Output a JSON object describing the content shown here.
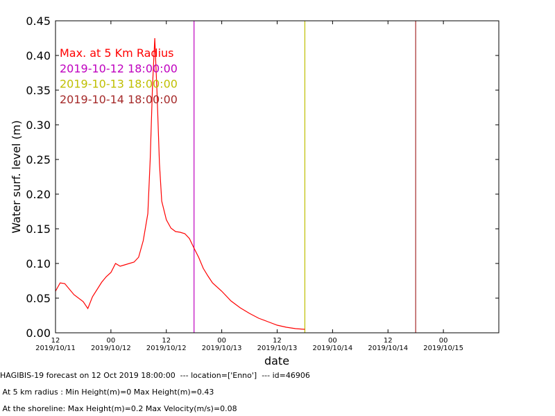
{
  "chart_data": {
    "type": "line",
    "xlabel": "date",
    "ylabel": "Water surf. level (m)",
    "ylim": [
      0,
      0.45
    ],
    "yticks": [
      "0.00",
      "0.05",
      "0.10",
      "0.15",
      "0.20",
      "0.25",
      "0.30",
      "0.35",
      "0.40",
      "0.45"
    ],
    "xlim": [
      "2019-10-11 12:00",
      "2019-10-15 12:00"
    ],
    "xticks": [
      {
        "top": "12",
        "bottom": "2019/10/11"
      },
      {
        "top": "00",
        "bottom": "2019/10/12"
      },
      {
        "top": "12",
        "bottom": "2019/10/12"
      },
      {
        "top": "00",
        "bottom": "2019/10/13"
      },
      {
        "top": "12",
        "bottom": "2019/10/13"
      },
      {
        "top": "00",
        "bottom": "2019/10/14"
      },
      {
        "top": "12",
        "bottom": "2019/10/14"
      },
      {
        "top": "00",
        "bottom": "2019/10/15"
      }
    ],
    "series": [
      {
        "name": "Max. at 5 Km Radius",
        "color": "#ff0000",
        "x": [
          "2019-10-11 12:00",
          "2019-10-11 13:00",
          "2019-10-11 14:00",
          "2019-10-11 16:00",
          "2019-10-11 18:00",
          "2019-10-11 19:00",
          "2019-10-11 20:00",
          "2019-10-11 22:00",
          "2019-10-11 23:00",
          "2019-10-12 00:00",
          "2019-10-12 01:00",
          "2019-10-12 02:00",
          "2019-10-12 03:00",
          "2019-10-12 05:00",
          "2019-10-12 06:00",
          "2019-10-12 07:00",
          "2019-10-12 08:00",
          "2019-10-12 08:30",
          "2019-10-12 09:00",
          "2019-10-12 09:30",
          "2019-10-12 10:00",
          "2019-10-12 10:30",
          "2019-10-12 11:00",
          "2019-10-12 12:00",
          "2019-10-12 13:00",
          "2019-10-12 14:00",
          "2019-10-12 15:00",
          "2019-10-12 16:00",
          "2019-10-12 17:00",
          "2019-10-12 18:00",
          "2019-10-12 19:00",
          "2019-10-12 20:00",
          "2019-10-12 21:00",
          "2019-10-12 22:00",
          "2019-10-13 00:00",
          "2019-10-13 02:00",
          "2019-10-13 04:00",
          "2019-10-13 06:00",
          "2019-10-13 08:00",
          "2019-10-13 10:00",
          "2019-10-13 12:00",
          "2019-10-13 14:00",
          "2019-10-13 16:00",
          "2019-10-13 18:00"
        ],
        "y": [
          0.06,
          0.072,
          0.071,
          0.055,
          0.045,
          0.035,
          0.052,
          0.073,
          0.081,
          0.087,
          0.1,
          0.096,
          0.098,
          0.102,
          0.109,
          0.133,
          0.172,
          0.25,
          0.355,
          0.425,
          0.345,
          0.245,
          0.19,
          0.163,
          0.151,
          0.146,
          0.145,
          0.143,
          0.136,
          0.122,
          0.109,
          0.093,
          0.082,
          0.072,
          0.06,
          0.046,
          0.036,
          0.028,
          0.021,
          0.016,
          0.011,
          0.008,
          0.006,
          0.005
        ]
      }
    ],
    "vlines": [
      {
        "x": "2019-10-12 18:00",
        "label": "2019-10-12 18:00:00",
        "color": "#bf00bf"
      },
      {
        "x": "2019-10-13 18:00",
        "label": "2019-10-13 18:00:00",
        "color": "#bfbf00"
      },
      {
        "x": "2019-10-14 18:00",
        "label": "2019-10-14 18:00:00",
        "color": "#a52a2a"
      }
    ],
    "legend_placement": "top-left",
    "grid": false
  },
  "footer": {
    "line1": "HAGIBIS-19 forecast on 12 Oct 2019 18:00:00  --- location=['Enno']  --- id=46906",
    "line2": " At 5 km radius : Min Height(m)=0 Max Height(m)=0.43",
    "line3": " At the shoreline: Max Height(m)=0.2 Max Velocity(m/s)=0.08"
  }
}
